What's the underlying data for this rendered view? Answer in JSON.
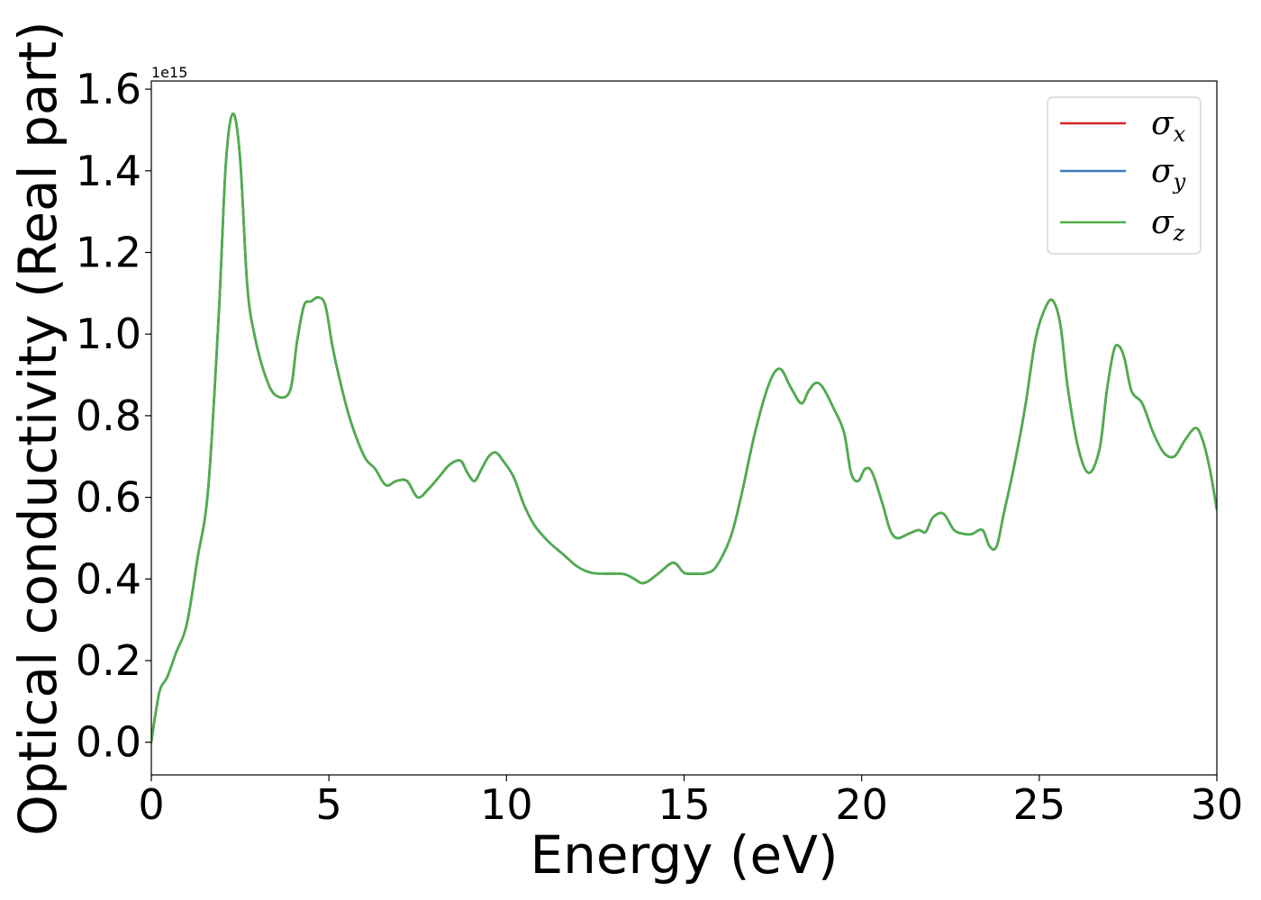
{
  "chart_data": {
    "type": "line",
    "title": "",
    "xlabel": "Energy (eV)",
    "ylabel": "Optical conductivity (Real part)",
    "y_offset_label": "1e15",
    "xlim": [
      0,
      30
    ],
    "ylim": [
      -0.08,
      1.62
    ],
    "xticks": [
      0,
      5,
      10,
      15,
      20,
      25,
      30
    ],
    "xtick_labels": [
      "0",
      "5",
      "10",
      "15",
      "20",
      "25",
      "30"
    ],
    "yticks": [
      0.0,
      0.2,
      0.4,
      0.6,
      0.8,
      1.0,
      1.2,
      1.4,
      1.6
    ],
    "ytick_labels": [
      "0.0",
      "0.2",
      "0.4",
      "0.6",
      "0.8",
      "1.0",
      "1.2",
      "1.4",
      "1.6"
    ],
    "grid": false,
    "legend_position": "top-right",
    "series": [
      {
        "name": "σ_x",
        "symbol": "σ",
        "subscript": "x",
        "color": "#d62728"
      },
      {
        "name": "σ_y",
        "symbol": "σ",
        "subscript": "y",
        "color": "#3a7dbc"
      },
      {
        "name": "σ_z",
        "symbol": "σ",
        "subscript": "z",
        "color": "#4daf4a"
      }
    ],
    "x": [
      0,
      0.1,
      0.25,
      0.45,
      0.7,
      1.0,
      1.3,
      1.6,
      1.9,
      2.1,
      2.3,
      2.5,
      2.7,
      2.9,
      3.2,
      3.5,
      3.9,
      4.1,
      4.3,
      4.5,
      4.7,
      4.9,
      5.1,
      5.3,
      5.6,
      6.0,
      6.3,
      6.6,
      6.9,
      7.2,
      7.5,
      7.8,
      8.1,
      8.4,
      8.7,
      8.9,
      9.1,
      9.3,
      9.5,
      9.7,
      9.9,
      10.2,
      10.5,
      10.8,
      11.2,
      11.6,
      12.0,
      12.4,
      12.8,
      13.3,
      13.6,
      13.8,
      14.0,
      14.3,
      14.7,
      15.0,
      15.3,
      15.6,
      15.9,
      16.3,
      16.6,
      17.0,
      17.4,
      17.7,
      18.0,
      18.3,
      18.5,
      18.7,
      18.9,
      19.2,
      19.5,
      19.7,
      19.9,
      20.1,
      20.3,
      20.6,
      20.8,
      21.0,
      21.3,
      21.6,
      21.8,
      22.0,
      22.3,
      22.6,
      22.9,
      23.1,
      23.4,
      23.6,
      23.8,
      24.0,
      24.3,
      24.6,
      24.9,
      25.2,
      25.4,
      25.6,
      25.8,
      26.1,
      26.4,
      26.7,
      26.9,
      27.1,
      27.25,
      27.4,
      27.6,
      27.9,
      28.2,
      28.5,
      28.8,
      29.1,
      29.4,
      29.6,
      29.8,
      30.0
    ],
    "values": [
      0.0,
      0.06,
      0.13,
      0.16,
      0.22,
      0.29,
      0.45,
      0.62,
      1.05,
      1.42,
      1.54,
      1.43,
      1.12,
      1.0,
      0.9,
      0.85,
      0.86,
      0.98,
      1.07,
      1.08,
      1.09,
      1.07,
      0.97,
      0.89,
      0.79,
      0.7,
      0.67,
      0.63,
      0.64,
      0.64,
      0.6,
      0.62,
      0.65,
      0.68,
      0.69,
      0.66,
      0.64,
      0.67,
      0.7,
      0.71,
      0.69,
      0.65,
      0.58,
      0.53,
      0.49,
      0.46,
      0.43,
      0.415,
      0.413,
      0.412,
      0.4,
      0.39,
      0.395,
      0.415,
      0.44,
      0.415,
      0.413,
      0.414,
      0.43,
      0.5,
      0.6,
      0.76,
      0.88,
      0.915,
      0.87,
      0.83,
      0.86,
      0.88,
      0.87,
      0.82,
      0.76,
      0.66,
      0.64,
      0.67,
      0.66,
      0.58,
      0.52,
      0.5,
      0.51,
      0.52,
      0.515,
      0.55,
      0.56,
      0.52,
      0.51,
      0.51,
      0.52,
      0.48,
      0.48,
      0.56,
      0.68,
      0.82,
      0.99,
      1.07,
      1.08,
      1.02,
      0.87,
      0.72,
      0.66,
      0.72,
      0.86,
      0.96,
      0.97,
      0.94,
      0.86,
      0.83,
      0.76,
      0.71,
      0.7,
      0.74,
      0.77,
      0.74,
      0.67,
      0.57
    ]
  }
}
